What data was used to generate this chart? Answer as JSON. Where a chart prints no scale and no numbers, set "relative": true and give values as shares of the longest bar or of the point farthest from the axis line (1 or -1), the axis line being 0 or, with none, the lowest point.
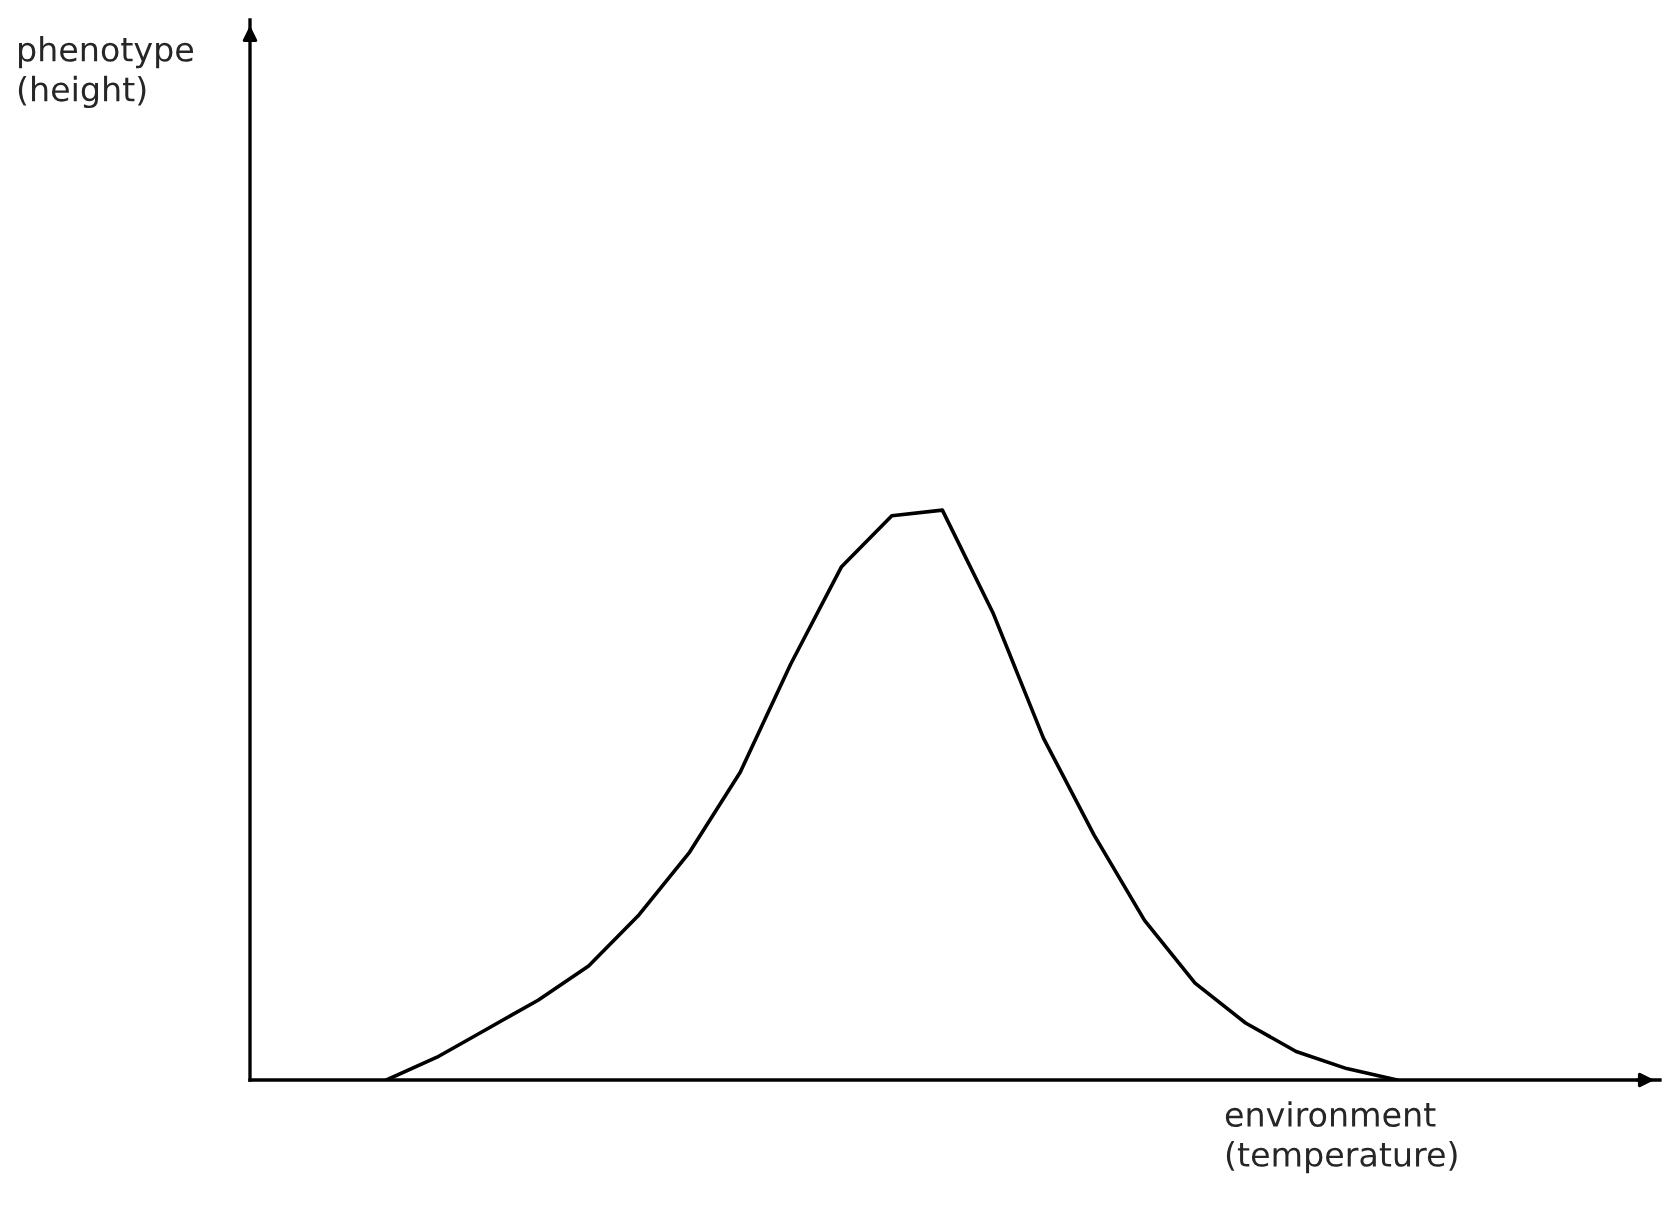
{
  "chart_data": {
    "type": "line",
    "relative": true,
    "xlabel": "environment\n(temperature)",
    "annotations": [
      "phenotype\n(height)"
    ],
    "categories": [
      null,
      null,
      null,
      null,
      null,
      null,
      null,
      null,
      null,
      null,
      null,
      null,
      null,
      null,
      null,
      null,
      null,
      null,
      null,
      null,
      null,
      null,
      null,
      null,
      null,
      null,
      null,
      null
    ],
    "series": [
      {
        "color": "#000000",
        "values": [
          null,
          null,
          0,
          0.04,
          0.09,
          0.14,
          0.2,
          0.29,
          0.4,
          0.54,
          0.73,
          0.9,
          0.99,
          1.0,
          0.82,
          0.6,
          0.43,
          0.28,
          0.17,
          0.1,
          0.05,
          0.02,
          0,
          null,
          null,
          null,
          null,
          null
        ]
      }
    ],
    "marker": "none",
    "line_style": "solid"
  }
}
